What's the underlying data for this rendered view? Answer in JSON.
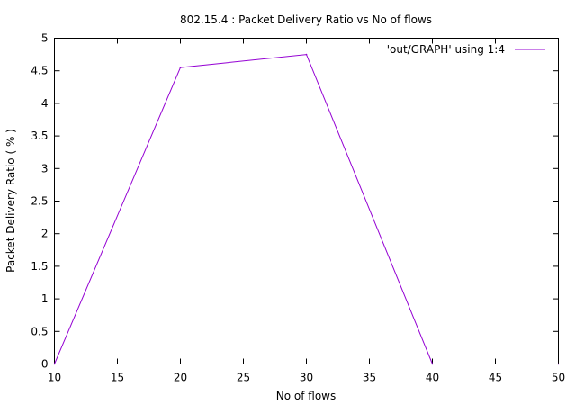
{
  "chart_data": {
    "type": "line",
    "title": "802.15.4 : Packet Delivery Ratio vs No of flows",
    "xlabel": "No of flows",
    "ylabel": "Packet Delivery Ratio ( % )",
    "xlim": [
      10,
      50
    ],
    "ylim": [
      0,
      5
    ],
    "x_ticks": [
      "10",
      "15",
      "20",
      "25",
      "30",
      "35",
      "40",
      "45",
      "50"
    ],
    "y_ticks": [
      "0",
      "0.5",
      "1",
      "1.5",
      "2",
      "2.5",
      "3",
      "3.5",
      "4",
      "4.5",
      "5"
    ],
    "grid": false,
    "legend_position": "top-right",
    "series": [
      {
        "name": "'out/GRAPH' using 1:4",
        "color": "#9400d3",
        "x": [
          10,
          20,
          30,
          40,
          50
        ],
        "y": [
          0,
          4.55,
          4.75,
          0,
          0
        ]
      }
    ]
  }
}
